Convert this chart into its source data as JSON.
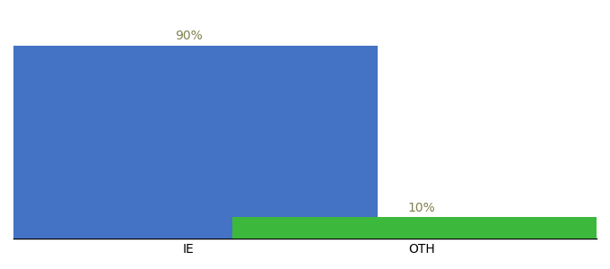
{
  "categories": [
    "IE",
    "OTH"
  ],
  "values": [
    90,
    10
  ],
  "bar_colors": [
    "#4472c4",
    "#3cb83c"
  ],
  "bar_labels": [
    "90%",
    "10%"
  ],
  "background_color": "#ffffff",
  "label_color": "#808050",
  "ylim": [
    0,
    105
  ],
  "bar_width": 0.65,
  "label_fontsize": 10,
  "tick_fontsize": 10,
  "x_positions": [
    0.3,
    0.7
  ]
}
